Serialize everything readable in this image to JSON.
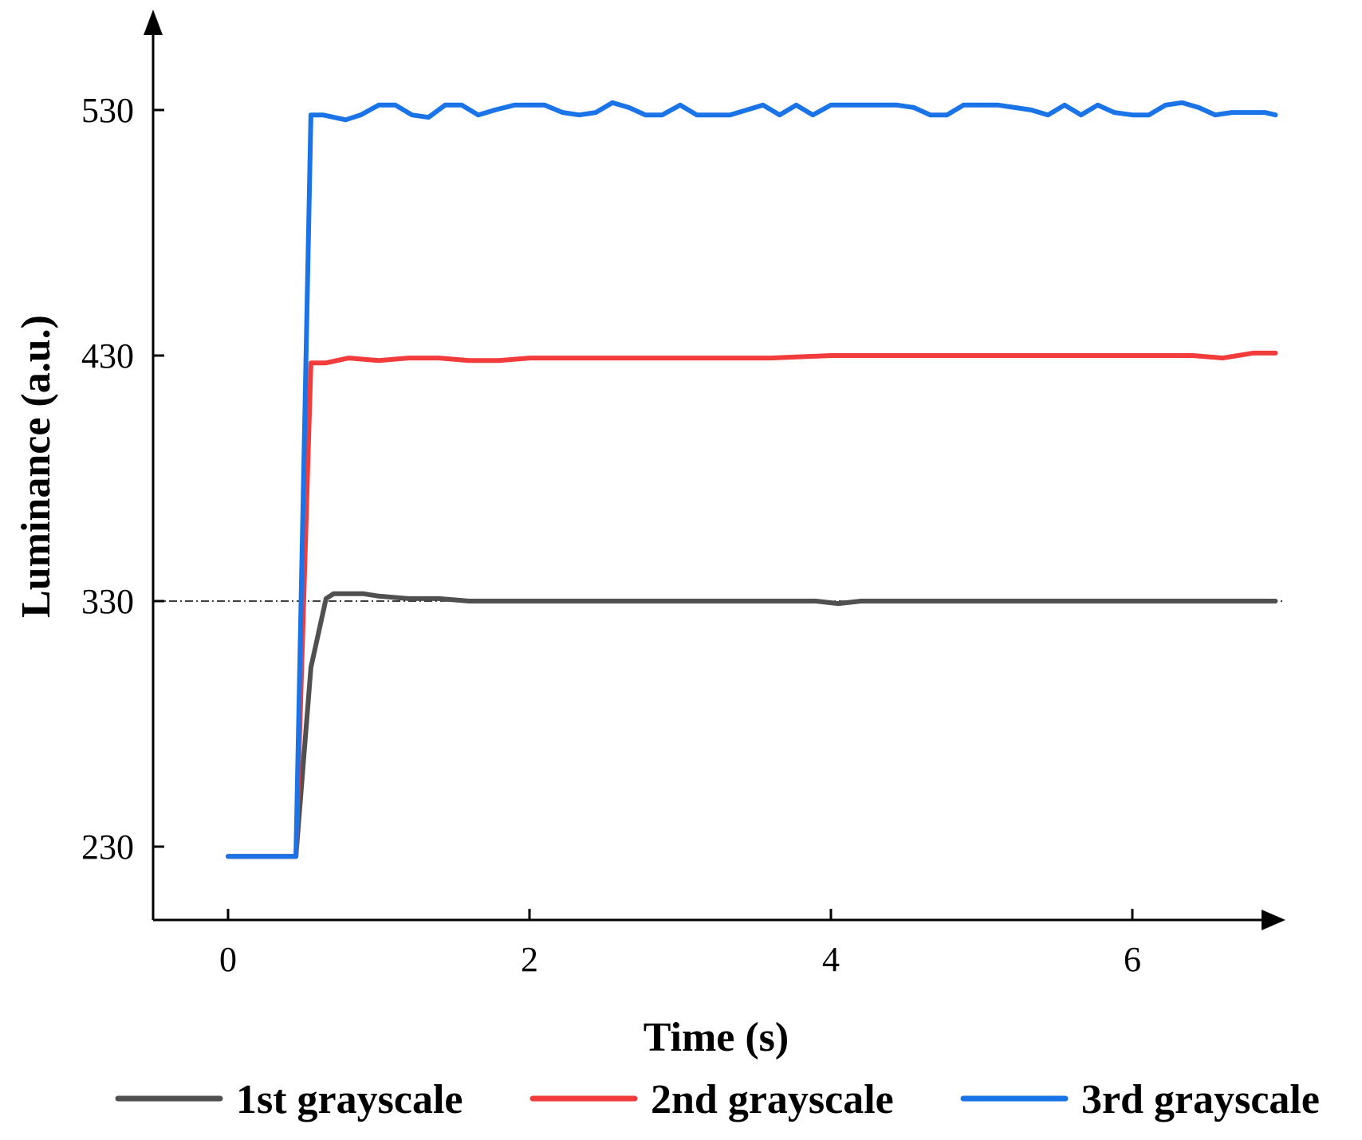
{
  "chart_data": {
    "type": "line",
    "xlabel": "Time (s)",
    "ylabel": "Luminance (a.u.)",
    "xlim": [
      -0.5,
      7.0
    ],
    "ylim": [
      200,
      570
    ],
    "xticks": [
      0,
      2,
      4,
      6
    ],
    "yticks": [
      230,
      330,
      430,
      530
    ],
    "reference_line_y": 330,
    "legend_position": "bottom",
    "grid": false,
    "series": [
      {
        "name": "1st grayscale",
        "color": "#505050",
        "x": [
          0,
          0.1,
          0.2,
          0.3,
          0.45,
          0.55,
          0.65,
          0.7,
          0.8,
          0.9,
          1.0,
          1.2,
          1.4,
          1.6,
          1.8,
          2.0,
          2.4,
          2.8,
          3.2,
          3.6,
          3.9,
          4.05,
          4.2,
          4.5,
          4.8,
          5.2,
          5.6,
          6.0,
          6.4,
          6.8,
          6.95
        ],
        "y": [
          226,
          226,
          226,
          226,
          226,
          303,
          331,
          333,
          333,
          333,
          332,
          331,
          331,
          330,
          330,
          330,
          330,
          330,
          330,
          330,
          330,
          329,
          330,
          330,
          330,
          330,
          330,
          330,
          330,
          330,
          330
        ]
      },
      {
        "name": "2nd grayscale",
        "color": "#f23c3c",
        "x": [
          0,
          0.1,
          0.2,
          0.3,
          0.45,
          0.55,
          0.65,
          0.8,
          1.0,
          1.2,
          1.4,
          1.6,
          1.8,
          2.0,
          2.2,
          2.4,
          2.6,
          2.8,
          3.0,
          3.3,
          3.6,
          4.0,
          4.3,
          4.6,
          5.0,
          5.4,
          5.8,
          6.2,
          6.4,
          6.6,
          6.8,
          6.95
        ],
        "y": [
          226,
          226,
          226,
          226,
          226,
          427,
          427,
          429,
          428,
          429,
          429,
          428,
          428,
          429,
          429,
          429,
          429,
          429,
          429,
          429,
          429,
          430,
          430,
          430,
          430,
          430,
          430,
          430,
          430,
          429,
          431,
          431
        ]
      },
      {
        "name": "3rd grayscale",
        "color": "#1a74e8",
        "x": [
          0,
          0.1,
          0.2,
          0.3,
          0.45,
          0.55,
          0.63,
          0.78,
          0.88,
          1.0,
          1.11,
          1.22,
          1.33,
          1.44,
          1.55,
          1.66,
          1.77,
          1.9,
          2.0,
          2.1,
          2.22,
          2.33,
          2.44,
          2.55,
          2.66,
          2.77,
          2.88,
          3.0,
          3.11,
          3.22,
          3.33,
          3.44,
          3.55,
          3.66,
          3.77,
          3.88,
          4.0,
          4.11,
          4.22,
          4.33,
          4.44,
          4.55,
          4.66,
          4.77,
          4.88,
          5.0,
          5.11,
          5.22,
          5.33,
          5.44,
          5.55,
          5.66,
          5.77,
          5.88,
          6.0,
          6.11,
          6.22,
          6.33,
          6.44,
          6.55,
          6.66,
          6.77,
          6.88,
          6.95
        ],
        "y": [
          226,
          226,
          226,
          226,
          226,
          528,
          528,
          526,
          528,
          532,
          532,
          528,
          527,
          532,
          532,
          528,
          530,
          532,
          532,
          532,
          529,
          528,
          529,
          533,
          531,
          528,
          528,
          532,
          528,
          528,
          528,
          530,
          532,
          528,
          532,
          528,
          532,
          532,
          532,
          532,
          532,
          531,
          528,
          528,
          532,
          532,
          532,
          531,
          530,
          528,
          532,
          528,
          532,
          529,
          528,
          528,
          532,
          533,
          531,
          528,
          529,
          529,
          529,
          528
        ]
      }
    ]
  }
}
